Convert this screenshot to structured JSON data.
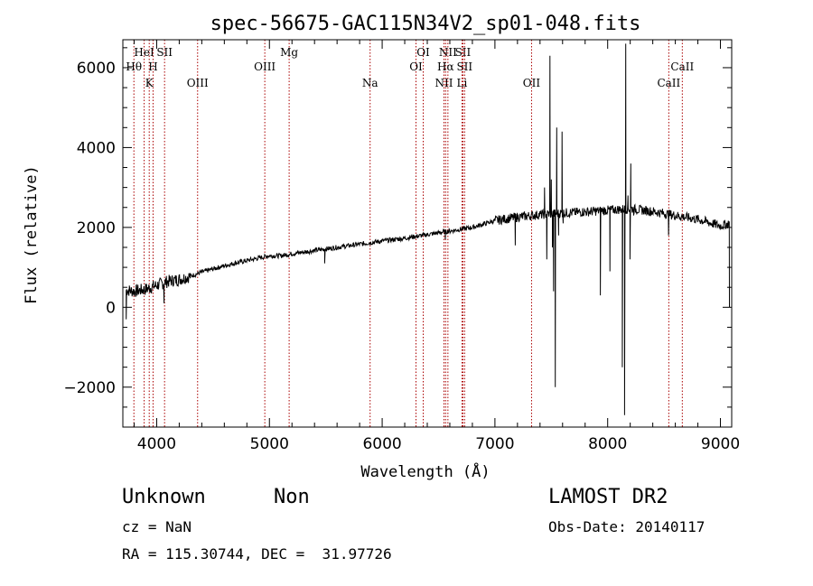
{
  "chart_data": {
    "type": "line",
    "title": "spec-56675-GAC115N34V2_sp01-048.fits",
    "xlabel": "Wavelength (Å)",
    "ylabel": "Flux (relative)",
    "xlim": [
      3700,
      9100
    ],
    "ylim": [
      -3000,
      6700
    ],
    "xticks": [
      4000,
      5000,
      6000,
      7000,
      8000,
      9000
    ],
    "yticks": [
      -2000,
      0,
      2000,
      4000,
      6000
    ],
    "series": [
      {
        "name": "flux",
        "continuum": [
          [
            3700,
            450
          ],
          [
            3800,
            400
          ],
          [
            3900,
            450
          ],
          [
            4000,
            550
          ],
          [
            4100,
            650
          ],
          [
            4200,
            700
          ],
          [
            4300,
            780
          ],
          [
            4400,
            880
          ],
          [
            4500,
            960
          ],
          [
            4600,
            1040
          ],
          [
            4700,
            1110
          ],
          [
            4800,
            1170
          ],
          [
            4900,
            1230
          ],
          [
            5000,
            1290
          ],
          [
            5100,
            1290
          ],
          [
            5200,
            1340
          ],
          [
            5400,
            1420
          ],
          [
            5600,
            1500
          ],
          [
            5800,
            1580
          ],
          [
            6000,
            1660
          ],
          [
            6200,
            1730
          ],
          [
            6400,
            1820
          ],
          [
            6600,
            1910
          ],
          [
            6800,
            2000
          ],
          [
            7000,
            2170
          ],
          [
            7200,
            2260
          ],
          [
            7400,
            2320
          ],
          [
            7600,
            2360
          ],
          [
            7800,
            2390
          ],
          [
            8000,
            2430
          ],
          [
            8200,
            2470
          ],
          [
            8400,
            2400
          ],
          [
            8600,
            2300
          ],
          [
            8800,
            2200
          ],
          [
            9000,
            2040
          ],
          [
            9080,
            2100
          ]
        ],
        "spikes": [
          [
            3730,
            -300
          ],
          [
            4065,
            100
          ],
          [
            5490,
            1100
          ],
          [
            6560,
            1700
          ],
          [
            7180,
            1550
          ],
          [
            7440,
            3000
          ],
          [
            7460,
            1200
          ],
          [
            7488,
            6300
          ],
          [
            7500,
            3200
          ],
          [
            7510,
            1500
          ],
          [
            7520,
            400
          ],
          [
            7535,
            -2000
          ],
          [
            7548,
            4500
          ],
          [
            7565,
            1800
          ],
          [
            7595,
            4400
          ],
          [
            7605,
            2100
          ],
          [
            7935,
            300
          ],
          [
            8020,
            900
          ],
          [
            8130,
            -1500
          ],
          [
            8150,
            -2700
          ],
          [
            8160,
            6600
          ],
          [
            8180,
            2800
          ],
          [
            8198,
            1200
          ],
          [
            8205,
            3600
          ],
          [
            8230,
            2300
          ],
          [
            8540,
            1800
          ],
          [
            9080,
            0
          ]
        ]
      }
    ],
    "lines": [
      {
        "name": "Hθ",
        "wave": 3798,
        "row": 2
      },
      {
        "name": "HeI",
        "wave": 3889,
        "row": 1
      },
      {
        "name": "K",
        "wave": 3934,
        "row": 3
      },
      {
        "name": "H",
        "wave": 3968,
        "row": 2
      },
      {
        "name": "SII",
        "wave": 4070,
        "row": 1
      },
      {
        "name": "OIII",
        "wave": 4363,
        "row": 3
      },
      {
        "name": "OIII",
        "wave": 4959,
        "row": 2
      },
      {
        "name": "Mg",
        "wave": 5175,
        "row": 1
      },
      {
        "name": "Na",
        "wave": 5893,
        "row": 3
      },
      {
        "name": "OI",
        "wave": 6300,
        "row": 2
      },
      {
        "name": "OI",
        "wave": 6364,
        "row": 1
      },
      {
        "name": "NII",
        "wave": 6548,
        "row": 3
      },
      {
        "name": "NII",
        "wave": 6583,
        "row": 1
      },
      {
        "name": "Hα",
        "wave": 6563,
        "row": 2
      },
      {
        "name": "SII",
        "wave": 6716,
        "row": 1
      },
      {
        "name": "SII",
        "wave": 6731,
        "row": 2
      },
      {
        "name": "Li",
        "wave": 6708,
        "row": 3
      },
      {
        "name": "OII",
        "wave": 7325,
        "row": 3
      },
      {
        "name": "CaII",
        "wave": 8542,
        "row": 3
      },
      {
        "name": "CaII",
        "wave": 8662,
        "row": 2
      }
    ]
  },
  "info": {
    "object_class": "Unknown",
    "object_subclass": "Non",
    "survey": "LAMOST DR2",
    "cz": "cz = NaN",
    "obs_date": "Obs-Date: 20140117",
    "coords": "RA = 115.30744, DEC =  31.97726"
  },
  "colors": {
    "line_marker": "#aa0000",
    "spectrum": "#000000"
  }
}
